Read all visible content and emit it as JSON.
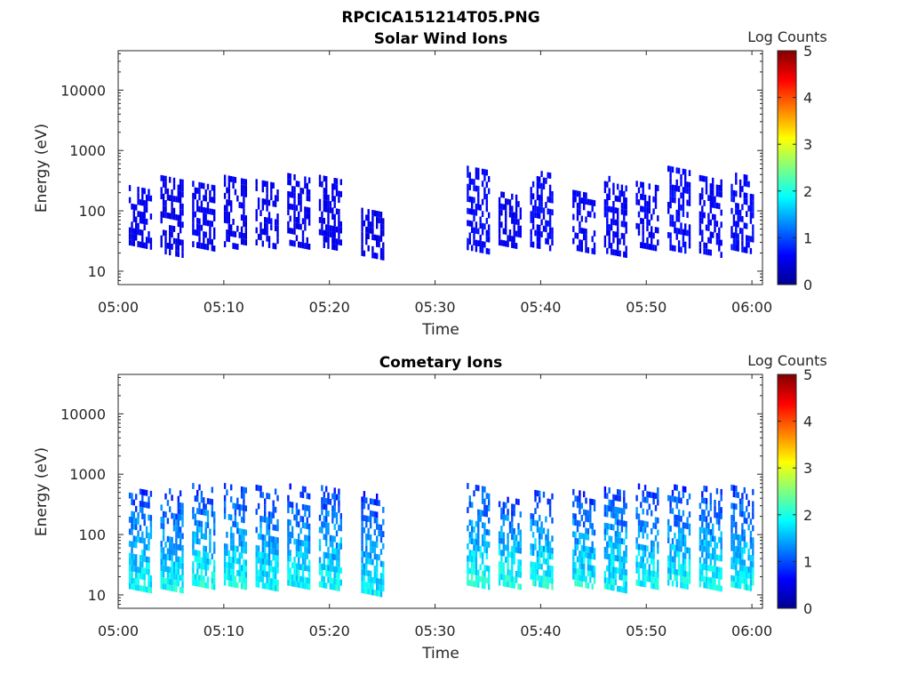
{
  "figure_title": "RPCICA151214T05.PNG",
  "chart_data": [
    {
      "type": "heatmap",
      "title": "Solar Wind Ions",
      "xlabel": "Time",
      "ylabel": "Energy (eV)",
      "x_ticks": [
        "05:00",
        "05:10",
        "05:20",
        "05:30",
        "05:40",
        "05:50",
        "06:00"
      ],
      "x_range": [
        "05:00",
        "06:01"
      ],
      "y_ticks": [
        "10",
        "100",
        "1000",
        "10000"
      ],
      "y_scale": "log",
      "y_range": [
        6,
        45000
      ],
      "colorbar": {
        "label": "Log Counts",
        "ticks": [
          "0",
          "1",
          "2",
          "3",
          "4",
          "5"
        ],
        "range": [
          0,
          5
        ],
        "colormap": "jet"
      },
      "data_gap": [
        "05:26",
        "05:33"
      ],
      "bursts": [
        {
          "t": "05:02",
          "emin": 30,
          "emax": 300,
          "level": 0.4
        },
        {
          "t": "05:05",
          "emin": 22,
          "emax": 400,
          "level": 0.4
        },
        {
          "t": "05:08",
          "emin": 28,
          "emax": 350,
          "level": 0.45
        },
        {
          "t": "05:11",
          "emin": 28,
          "emax": 380,
          "level": 0.4
        },
        {
          "t": "05:14",
          "emin": 30,
          "emax": 350,
          "level": 0.4
        },
        {
          "t": "05:17",
          "emin": 30,
          "emax": 400,
          "level": 0.4
        },
        {
          "t": "05:20",
          "emin": 28,
          "emax": 380,
          "level": 0.4
        },
        {
          "t": "05:24",
          "emin": 20,
          "emax": 120,
          "level": 0.35
        },
        {
          "t": "05:34",
          "emin": 25,
          "emax": 600,
          "level": 0.5
        },
        {
          "t": "05:37",
          "emin": 30,
          "emax": 200,
          "level": 0.4
        },
        {
          "t": "05:40",
          "emin": 28,
          "emax": 550,
          "level": 0.5
        },
        {
          "t": "05:44",
          "emin": 25,
          "emax": 250,
          "level": 0.45
        },
        {
          "t": "05:47",
          "emin": 22,
          "emax": 350,
          "level": 0.45
        },
        {
          "t": "05:50",
          "emin": 28,
          "emax": 300,
          "level": 0.45
        },
        {
          "t": "05:53",
          "emin": 25,
          "emax": 500,
          "level": 0.5
        },
        {
          "t": "05:56",
          "emin": 22,
          "emax": 400,
          "level": 0.45
        },
        {
          "t": "05:59",
          "emin": 25,
          "emax": 450,
          "level": 0.5
        }
      ]
    },
    {
      "type": "heatmap",
      "title": "Cometary Ions",
      "xlabel": "Time",
      "ylabel": "Energy (eV)",
      "x_ticks": [
        "05:00",
        "05:10",
        "05:20",
        "05:30",
        "05:40",
        "05:50",
        "06:00"
      ],
      "x_range": [
        "05:00",
        "06:01"
      ],
      "y_ticks": [
        "10",
        "100",
        "1000",
        "10000"
      ],
      "y_scale": "log",
      "y_range": [
        6,
        45000
      ],
      "colorbar": {
        "label": "Log Counts",
        "ticks": [
          "0",
          "1",
          "2",
          "3",
          "4",
          "5"
        ],
        "range": [
          0,
          5
        ],
        "colormap": "jet"
      },
      "data_gap": [
        "05:26",
        "05:33"
      ],
      "bursts": [
        {
          "t": "05:02",
          "emin": 14,
          "emax": 700,
          "level": 1.9
        },
        {
          "t": "05:05",
          "emin": 14,
          "emax": 600,
          "level": 1.9
        },
        {
          "t": "05:08",
          "emin": 16,
          "emax": 650,
          "level": 2.0
        },
        {
          "t": "05:11",
          "emin": 16,
          "emax": 650,
          "level": 2.0
        },
        {
          "t": "05:14",
          "emin": 15,
          "emax": 700,
          "level": 1.9
        },
        {
          "t": "05:17",
          "emin": 16,
          "emax": 700,
          "level": 1.9
        },
        {
          "t": "05:20",
          "emin": 15,
          "emax": 700,
          "level": 1.9
        },
        {
          "t": "05:24",
          "emin": 12,
          "emax": 600,
          "level": 1.8
        },
        {
          "t": "05:34",
          "emin": 16,
          "emax": 700,
          "level": 2.0
        },
        {
          "t": "05:37",
          "emin": 16,
          "emax": 500,
          "level": 2.0
        },
        {
          "t": "05:40",
          "emin": 16,
          "emax": 600,
          "level": 2.0
        },
        {
          "t": "05:44",
          "emin": 16,
          "emax": 600,
          "level": 1.9
        },
        {
          "t": "05:47",
          "emin": 14,
          "emax": 700,
          "level": 1.9
        },
        {
          "t": "05:50",
          "emin": 16,
          "emax": 650,
          "level": 1.9
        },
        {
          "t": "05:53",
          "emin": 16,
          "emax": 800,
          "level": 1.9
        },
        {
          "t": "05:56",
          "emin": 15,
          "emax": 700,
          "level": 1.9
        },
        {
          "t": "05:59",
          "emin": 15,
          "emax": 700,
          "level": 1.9
        }
      ]
    }
  ]
}
